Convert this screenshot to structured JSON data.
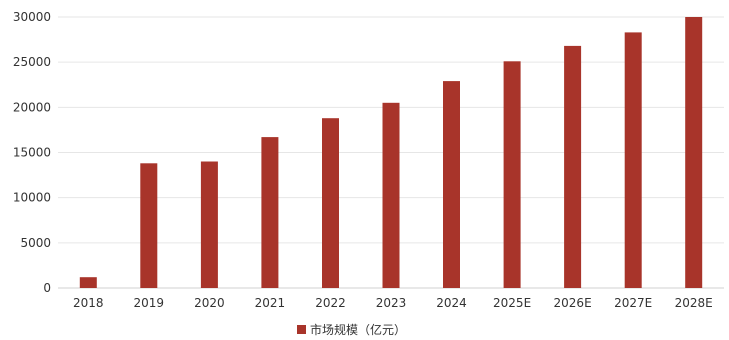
{
  "chart_data": {
    "type": "bar",
    "categories": [
      "2018",
      "2019",
      "2020",
      "2021",
      "2022",
      "2023",
      "2024",
      "2025E",
      "2026E",
      "2027E",
      "2028E"
    ],
    "series": [
      {
        "name": "市场规模（亿元）",
        "values": [
          1200,
          13800,
          14000,
          16700,
          18800,
          20500,
          22900,
          25100,
          26800,
          28300,
          30000
        ],
        "color": "#A8342A"
      }
    ],
    "ylim": [
      0,
      30000
    ],
    "yticks": [
      0,
      5000,
      10000,
      15000,
      20000,
      25000,
      30000
    ],
    "grid": true,
    "legend_position": "bottom-center",
    "colors": {
      "grid": "#E6E6E6",
      "axis": "#D0D0D0",
      "text": "#333333"
    }
  }
}
